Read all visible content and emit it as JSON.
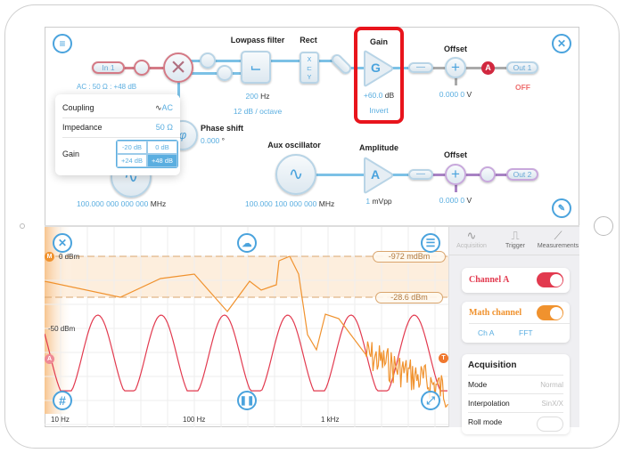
{
  "colors": {
    "accent": "#4aa3dd",
    "channel_a": "#e23a4f",
    "math": "#f0922e",
    "highlight": "#e8141c"
  },
  "top": {
    "in1": {
      "label": "In 1",
      "status": "AC : 50 Ω : +48 dB"
    },
    "popover": {
      "coupling_label": "Coupling",
      "coupling_value": "AC",
      "coupling_icon": "sine-wave-icon",
      "impedance_label": "Impedance",
      "impedance_value": "50 Ω",
      "gain_label": "Gain",
      "gain_options": [
        "-20 dB",
        "0 dB",
        "+24 dB",
        "+48 dB"
      ],
      "gain_selected": "+48 dB"
    },
    "lowpass": {
      "title": "Lowpass filter",
      "freq": "200",
      "freq_unit": "Hz",
      "slope": "12 dB / octave"
    },
    "rect": {
      "title": "Rect",
      "glyph_top": "X",
      "glyph_bottom": "Y"
    },
    "gain": {
      "title": "Gain",
      "glyph": "G",
      "value": "+60.0",
      "unit": "dB",
      "invert": "Invert"
    },
    "offset1": {
      "title": "Offset",
      "value": "0.000 0",
      "unit": "V"
    },
    "out1": {
      "badge": "A",
      "label": "Out 1",
      "state": "OFF"
    },
    "phase": {
      "title": "Phase shift",
      "value": "0.000",
      "unit": "°",
      "glyph": "φ"
    },
    "osc1": {
      "freq": "100.000 000 000 000",
      "unit": "MHz"
    },
    "aux": {
      "title": "Aux oscillator",
      "freq": "100.000 100 000 000",
      "unit": "MHz"
    },
    "amplitude": {
      "title": "Amplitude",
      "glyph": "A",
      "value": "1",
      "unit": "mVpp"
    },
    "offset2": {
      "title": "Offset",
      "value": "0.000 0",
      "unit": "V"
    },
    "out2": {
      "label": "Out 2"
    }
  },
  "plot": {
    "x_ticks": [
      "10 Hz",
      "100 Hz",
      "1 kHz"
    ],
    "y_ticks": [
      "0 dBm",
      "-50 dBm"
    ],
    "cursor1": "-972 mdBm",
    "cursor2": "-28.6 dBm",
    "markers": {
      "math": "M",
      "channel": "A",
      "trigger": "T"
    }
  },
  "side": {
    "tabs": [
      {
        "label": "Acquisition",
        "active": true
      },
      {
        "label": "Trigger"
      },
      {
        "label": "Measurements"
      }
    ],
    "channel_a": {
      "label": "Channel A",
      "on": true
    },
    "math": {
      "label": "Math channel",
      "on": true,
      "source": "Ch A",
      "op": "FFT"
    },
    "acquisition": {
      "title": "Acquisition",
      "rows": [
        {
          "label": "Mode",
          "value": "Normal"
        },
        {
          "label": "Interpolation",
          "value": "SinX/X"
        },
        {
          "label": "Roll mode",
          "toggle": false
        }
      ]
    }
  }
}
